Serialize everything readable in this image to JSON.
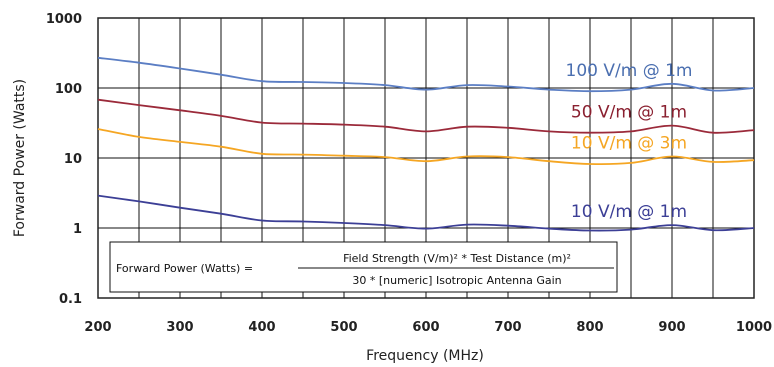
{
  "chart_data": {
    "type": "line",
    "title": "",
    "xlabel": "Frequency (MHz)",
    "ylabel": "Forward Power (Watts)",
    "xlim": [
      200,
      1000
    ],
    "ylim": [
      0.1,
      1000
    ],
    "yscale": "log",
    "grid": true,
    "x_ticks": [
      "200",
      "300",
      "400",
      "500",
      "600",
      "700",
      "800",
      "900",
      "1000"
    ],
    "y_ticks": [
      "0.1",
      "1",
      "10",
      "100",
      "1000"
    ],
    "series": [
      {
        "name": "100 V/m @ 1m",
        "color": "#5b7ec4",
        "label_color": "#4b6fb0",
        "points": [
          [
            200,
            270
          ],
          [
            250,
            230
          ],
          [
            300,
            190
          ],
          [
            350,
            155
          ],
          [
            400,
            125
          ],
          [
            450,
            122
          ],
          [
            500,
            118
          ],
          [
            550,
            110
          ],
          [
            600,
            95
          ],
          [
            650,
            110
          ],
          [
            700,
            105
          ],
          [
            750,
            95
          ],
          [
            800,
            90
          ],
          [
            850,
            95
          ],
          [
            900,
            115
          ],
          [
            950,
            92
          ],
          [
            1000,
            100
          ]
        ]
      },
      {
        "name": "50 V/m @ 1m",
        "color": "#9b2a3a",
        "label_color": "#8a2030",
        "points": [
          [
            200,
            68
          ],
          [
            250,
            57
          ],
          [
            300,
            48
          ],
          [
            350,
            40
          ],
          [
            400,
            32
          ],
          [
            450,
            31
          ],
          [
            500,
            30
          ],
          [
            550,
            28
          ],
          [
            600,
            24
          ],
          [
            650,
            28
          ],
          [
            700,
            27
          ],
          [
            750,
            24
          ],
          [
            800,
            23
          ],
          [
            850,
            24
          ],
          [
            900,
            29
          ],
          [
            950,
            23
          ],
          [
            1000,
            25
          ]
        ]
      },
      {
        "name": "10 V/m @ 3m",
        "color": "#f5a623",
        "label_color": "#f5a623",
        "points": [
          [
            200,
            26
          ],
          [
            250,
            20
          ],
          [
            300,
            17
          ],
          [
            350,
            14.5
          ],
          [
            400,
            11.5
          ],
          [
            450,
            11.2
          ],
          [
            500,
            10.8
          ],
          [
            550,
            10.3
          ],
          [
            600,
            9
          ],
          [
            650,
            10.5
          ],
          [
            700,
            10.3
          ],
          [
            750,
            9
          ],
          [
            800,
            8.2
          ],
          [
            850,
            8.5
          ],
          [
            900,
            10.5
          ],
          [
            950,
            8.8
          ],
          [
            1000,
            9.3
          ]
        ]
      },
      {
        "name": "10 V/m @ 1m",
        "color": "#3c3f96",
        "label_color": "#3c3f96",
        "points": [
          [
            200,
            2.9
          ],
          [
            250,
            2.4
          ],
          [
            300,
            1.95
          ],
          [
            350,
            1.6
          ],
          [
            400,
            1.28
          ],
          [
            450,
            1.24
          ],
          [
            500,
            1.18
          ],
          [
            550,
            1.1
          ],
          [
            600,
            0.98
          ],
          [
            650,
            1.12
          ],
          [
            700,
            1.08
          ],
          [
            750,
            0.98
          ],
          [
            800,
            0.92
          ],
          [
            850,
            0.95
          ],
          [
            900,
            1.1
          ],
          [
            950,
            0.93
          ],
          [
            1000,
            1.0
          ]
        ]
      }
    ],
    "annotation": {
      "lhs": "Forward Power (Watts) =",
      "numerator": "Field Strength (V/m)² * Test Distance (m)²",
      "denominator": "30 * [numeric] Isotropic Antenna Gain"
    }
  }
}
